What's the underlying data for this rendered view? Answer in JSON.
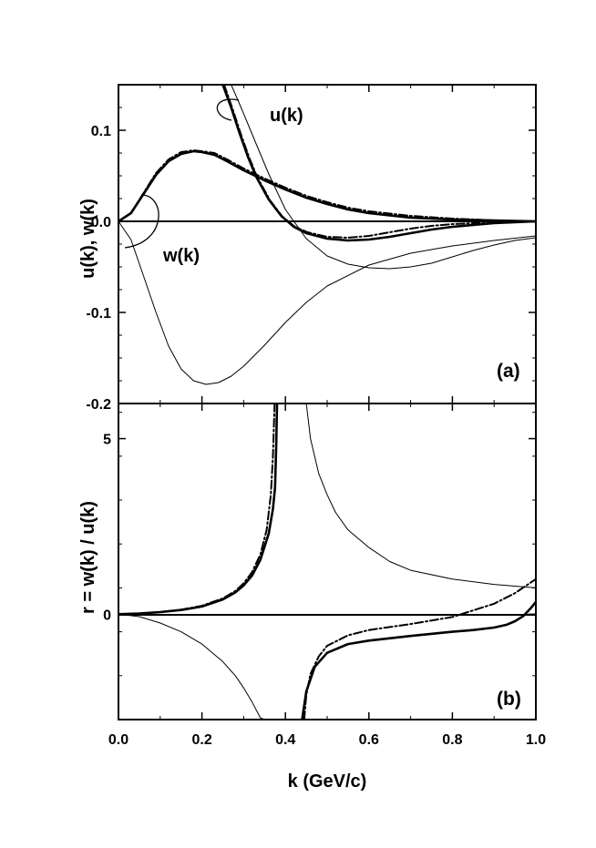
{
  "chart_data": [
    {
      "panel_label": "(a)",
      "type": "line",
      "ylabel": "u(k),  w(k)",
      "xlim": [
        0.0,
        1.0
      ],
      "ylim": [
        -0.2,
        0.15
      ],
      "yticks": [
        0.1,
        0.0,
        -0.1,
        -0.2
      ],
      "ytick_labels": [
        "0.1",
        "0.0",
        "-0.1",
        "-0.2"
      ],
      "annotations": [
        "u(k)",
        "w(k)"
      ],
      "series": [
        {
          "name": "u(k) model 1",
          "style": "thin-solid",
          "x": [
            0.27,
            0.29,
            0.31,
            0.33,
            0.36,
            0.4,
            0.45,
            0.5,
            0.55,
            0.6,
            0.65,
            0.7,
            0.75,
            0.8,
            0.85,
            0.9,
            0.95,
            1.0
          ],
          "y": [
            0.15,
            0.129,
            0.107,
            0.085,
            0.052,
            0.013,
            -0.019,
            -0.038,
            -0.047,
            -0.051,
            -0.052,
            -0.05,
            -0.046,
            -0.039,
            -0.032,
            -0.026,
            -0.021,
            -0.018
          ]
        },
        {
          "name": "u(k) model 2",
          "style": "thick-solid",
          "x": [
            0.25,
            0.27,
            0.29,
            0.31,
            0.33,
            0.36,
            0.39,
            0.42,
            0.45,
            0.5,
            0.55,
            0.6,
            0.65,
            0.7,
            0.75,
            0.8,
            0.85,
            0.9,
            0.95,
            1.0
          ],
          "y": [
            0.15,
            0.125,
            0.097,
            0.071,
            0.049,
            0.024,
            0.006,
            -0.006,
            -0.013,
            -0.019,
            -0.021,
            -0.02,
            -0.017,
            -0.013,
            -0.009,
            -0.006,
            -0.004,
            -0.002,
            -0.001,
            0.0
          ]
        },
        {
          "name": "u(k) model 3",
          "style": "dash-dot",
          "x": [
            0.253,
            0.273,
            0.293,
            0.313,
            0.333,
            0.363,
            0.393,
            0.423,
            0.453,
            0.5,
            0.55,
            0.6,
            0.65,
            0.7,
            0.75,
            0.8,
            0.85,
            0.9,
            0.95,
            1.0
          ],
          "y": [
            0.15,
            0.124,
            0.096,
            0.07,
            0.048,
            0.023,
            0.005,
            -0.006,
            -0.012,
            -0.017,
            -0.018,
            -0.016,
            -0.012,
            -0.008,
            -0.005,
            -0.003,
            -0.002,
            -0.001,
            0.0,
            0.0
          ]
        },
        {
          "name": "w(k) model 1",
          "style": "thin-solid",
          "x": [
            0.0,
            0.03,
            0.06,
            0.09,
            0.12,
            0.15,
            0.18,
            0.21,
            0.24,
            0.27,
            0.3,
            0.35,
            0.4,
            0.45,
            0.5,
            0.6,
            0.7,
            0.8,
            0.9,
            1.0
          ],
          "y": [
            0.0,
            -0.02,
            -0.06,
            -0.1,
            -0.137,
            -0.162,
            -0.175,
            -0.179,
            -0.177,
            -0.17,
            -0.159,
            -0.136,
            -0.111,
            -0.089,
            -0.071,
            -0.048,
            -0.035,
            -0.027,
            -0.021,
            -0.016
          ]
        },
        {
          "name": "w(k) model 2",
          "style": "thick-solid",
          "x": [
            0.0,
            0.03,
            0.06,
            0.09,
            0.12,
            0.15,
            0.18,
            0.2,
            0.23,
            0.26,
            0.3,
            0.35,
            0.4,
            0.45,
            0.5,
            0.55,
            0.6,
            0.7,
            0.8,
            0.9,
            1.0
          ],
          "y": [
            0.0,
            0.009,
            0.03,
            0.051,
            0.066,
            0.074,
            0.077,
            0.076,
            0.073,
            0.066,
            0.056,
            0.045,
            0.035,
            0.026,
            0.019,
            0.013,
            0.009,
            0.004,
            0.002,
            0.001,
            0.0
          ]
        },
        {
          "name": "w(k) model 3",
          "style": "dash-dot",
          "x": [
            0.0,
            0.03,
            0.06,
            0.09,
            0.12,
            0.15,
            0.18,
            0.2,
            0.23,
            0.26,
            0.3,
            0.35,
            0.4,
            0.45,
            0.5,
            0.55,
            0.6,
            0.7,
            0.8,
            0.9,
            1.0
          ],
          "y": [
            0.0,
            0.009,
            0.031,
            0.053,
            0.068,
            0.076,
            0.078,
            0.077,
            0.075,
            0.068,
            0.058,
            0.047,
            0.037,
            0.028,
            0.021,
            0.015,
            0.011,
            0.006,
            0.003,
            0.001,
            0.0
          ]
        }
      ]
    },
    {
      "panel_label": "(b)",
      "type": "line",
      "ylabel": "r = w(k) / u(k)",
      "xlabel": "k (GeV/c)",
      "xlim": [
        0.0,
        1.0
      ],
      "xticks": [
        0.0,
        0.2,
        0.4,
        0.6,
        0.8,
        1.0
      ],
      "xtick_labels": [
        "0.0",
        "0.2",
        "0.4",
        "0.6",
        "0.8",
        "1.0"
      ],
      "ylim": [
        -3,
        6
      ],
      "yticks": [
        5,
        0
      ],
      "ytick_labels": [
        "5",
        "0"
      ],
      "series": [
        {
          "name": "r model 1 (left branch)",
          "style": "thin-solid",
          "x": [
            0.0,
            0.05,
            0.1,
            0.15,
            0.2,
            0.25,
            0.28,
            0.3,
            0.32,
            0.34,
            0.35
          ],
          "y": [
            0.0,
            -0.07,
            -0.25,
            -0.5,
            -0.85,
            -1.35,
            -1.75,
            -2.1,
            -2.5,
            -2.95,
            -3.0
          ]
        },
        {
          "name": "r model 1 (right branch)",
          "style": "thin-solid",
          "x": [
            0.45,
            0.46,
            0.48,
            0.5,
            0.52,
            0.55,
            0.6,
            0.65,
            0.7,
            0.8,
            0.9,
            1.0
          ],
          "y": [
            6.0,
            5.0,
            4.0,
            3.4,
            2.9,
            2.4,
            1.9,
            1.5,
            1.25,
            1.0,
            0.85,
            0.75
          ]
        },
        {
          "name": "r model 2 (left branch)",
          "style": "thick-solid",
          "x": [
            0.0,
            0.05,
            0.1,
            0.15,
            0.2,
            0.25,
            0.28,
            0.3,
            0.32,
            0.34,
            0.36,
            0.37,
            0.375,
            0.378,
            0.38
          ],
          "y": [
            0.0,
            0.02,
            0.06,
            0.12,
            0.22,
            0.42,
            0.62,
            0.82,
            1.1,
            1.55,
            2.3,
            3.0,
            3.6,
            4.8,
            6.0
          ]
        },
        {
          "name": "r model 2 (right branch)",
          "style": "thick-solid",
          "x": [
            0.44,
            0.445,
            0.45,
            0.47,
            0.5,
            0.55,
            0.6,
            0.7,
            0.8,
            0.85,
            0.9,
            0.93,
            0.95,
            0.97,
            0.99,
            1.0
          ],
          "y": [
            -3.0,
            -2.6,
            -2.2,
            -1.5,
            -1.1,
            -0.85,
            -0.75,
            -0.62,
            -0.5,
            -0.45,
            -0.38,
            -0.3,
            -0.2,
            -0.05,
            0.2,
            0.35
          ]
        },
        {
          "name": "r model 3 (left branch)",
          "style": "dash-dot",
          "x": [
            0.0,
            0.05,
            0.1,
            0.15,
            0.2,
            0.25,
            0.28,
            0.3,
            0.32,
            0.34,
            0.355,
            0.365,
            0.37,
            0.374
          ],
          "y": [
            0.0,
            0.02,
            0.06,
            0.13,
            0.24,
            0.45,
            0.66,
            0.88,
            1.2,
            1.7,
            2.4,
            3.4,
            4.5,
            6.0
          ]
        },
        {
          "name": "r model 3 (right branch)",
          "style": "dash-dot",
          "x": [
            0.445,
            0.45,
            0.46,
            0.48,
            0.5,
            0.55,
            0.6,
            0.7,
            0.8,
            0.9,
            0.95,
            1.0
          ],
          "y": [
            -3.0,
            -2.3,
            -1.7,
            -1.2,
            -0.9,
            -0.6,
            -0.45,
            -0.28,
            -0.08,
            0.3,
            0.6,
            1.0
          ]
        }
      ]
    }
  ]
}
